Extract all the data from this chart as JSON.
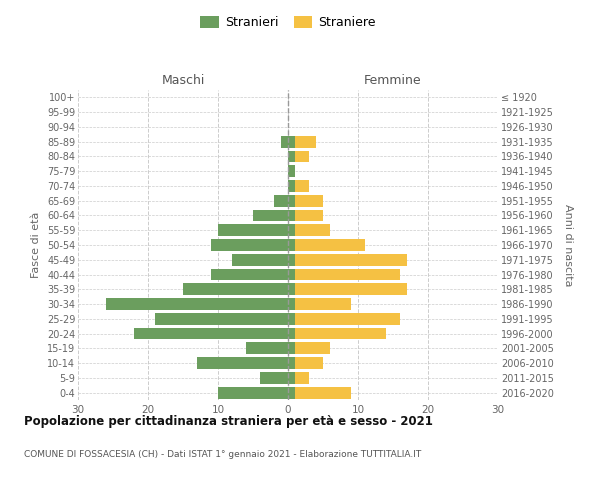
{
  "age_groups": [
    "0-4",
    "5-9",
    "10-14",
    "15-19",
    "20-24",
    "25-29",
    "30-34",
    "35-39",
    "40-44",
    "45-49",
    "50-54",
    "55-59",
    "60-64",
    "65-69",
    "70-74",
    "75-79",
    "80-84",
    "85-89",
    "90-94",
    "95-99",
    "100+"
  ],
  "birth_years": [
    "2016-2020",
    "2011-2015",
    "2006-2010",
    "2001-2005",
    "1996-2000",
    "1991-1995",
    "1986-1990",
    "1981-1985",
    "1976-1980",
    "1971-1975",
    "1966-1970",
    "1961-1965",
    "1956-1960",
    "1951-1955",
    "1946-1950",
    "1941-1945",
    "1936-1940",
    "1931-1935",
    "1926-1930",
    "1921-1925",
    "≤ 1920"
  ],
  "males": [
    10,
    4,
    13,
    6,
    22,
    19,
    26,
    15,
    11,
    8,
    11,
    10,
    5,
    2,
    0,
    0,
    0,
    1,
    0,
    0,
    0
  ],
  "females": [
    9,
    3,
    5,
    6,
    14,
    16,
    9,
    17,
    16,
    17,
    11,
    6,
    5,
    5,
    3,
    1,
    3,
    4,
    0,
    0,
    0
  ],
  "male_color": "#6b9e5e",
  "female_color": "#f5c143",
  "background_color": "#ffffff",
  "grid_color": "#cccccc",
  "title": "Popolazione per cittadinanza straniera per età e sesso - 2021",
  "subtitle": "COMUNE DI FOSSACESIA (CH) - Dati ISTAT 1° gennaio 2021 - Elaborazione TUTTITALIA.IT",
  "legend_stranieri": "Stranieri",
  "legend_straniere": "Straniere",
  "label_maschi": "Maschi",
  "label_femmine": "Femmine",
  "ylabel_left": "Fasce di età",
  "ylabel_right": "Anni di nascita",
  "xlim": 30,
  "xtick_vals": [
    -30,
    -20,
    -10,
    0,
    10,
    20,
    30
  ],
  "xtick_labels": [
    "30",
    "20",
    "10",
    "0",
    "10",
    "20",
    "30"
  ]
}
